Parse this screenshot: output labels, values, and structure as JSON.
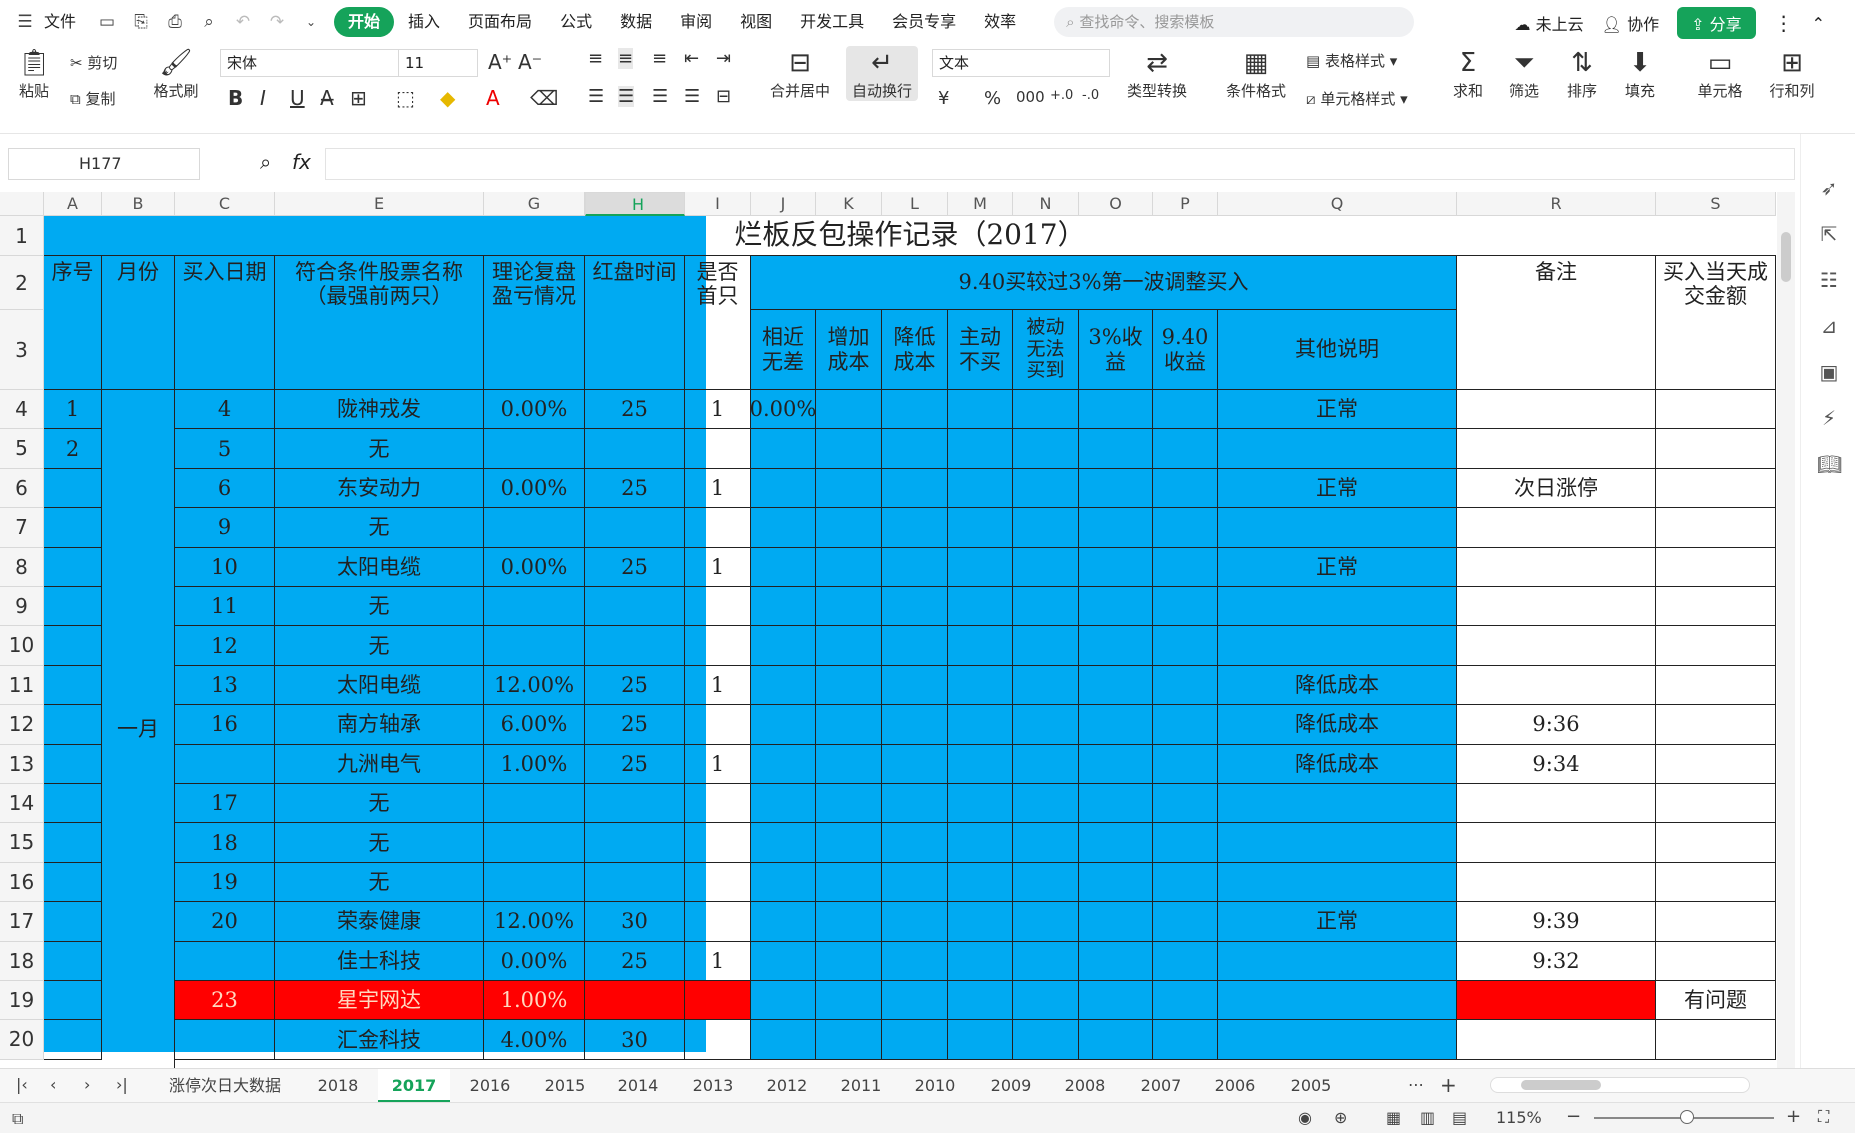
{
  "menu": {
    "file": "文件",
    "tabs": [
      "开始",
      "插入",
      "页面布局",
      "公式",
      "数据",
      "审阅",
      "视图",
      "开发工具",
      "会员专享",
      "效率"
    ],
    "search_placeholder": "查找命令、搜索模板",
    "cloud": "未上云",
    "collab": "协作",
    "share": "分享"
  },
  "ribbon": {
    "paste": "粘贴",
    "cut": "剪切",
    "copy": "复制",
    "format_painter": "格式刷",
    "font": "宋体",
    "size": "11",
    "merge": "合并居中",
    "wrap": "自动换行",
    "numfmt": "文本",
    "convert": "类型转换",
    "cond_format": "条件格式",
    "table_style": "表格样式",
    "cell_style": "单元格样式",
    "sum": "求和",
    "filter": "筛选",
    "sort": "排序",
    "fill": "填充",
    "cell": "单元格",
    "rowcol": "行和列"
  },
  "formula_bar": {
    "namebox": "H177",
    "fx": "fx"
  },
  "columns": [
    "A",
    "B",
    "C",
    "E",
    "G",
    "H",
    "I",
    "J",
    "K",
    "L",
    "M",
    "N",
    "O",
    "P",
    "Q",
    "R",
    "S"
  ],
  "sheet": {
    "title": "烂板反包操作记录（2017）",
    "h_seq": "序号",
    "h_month": "月份",
    "h_date": "买入日期",
    "h_stock": "符合条件股票名称\n（最强前两只）",
    "h_theory": "理论复盘\n盈亏情况",
    "h_red": "红盘时间",
    "h_first": "是否\n首只",
    "h_group": "9.40买较过3%第一波调整买入",
    "h_note": "备注",
    "h_amount": "买入当天成\n交金额",
    "sub": [
      "相近\n无差",
      "增加\n成本",
      "降低\n成本",
      "主动\n不买",
      "被动\n无法\n买到",
      "3%收益",
      "9.40\n收益",
      "其他说明"
    ],
    "month": "一月",
    "rows": [
      {
        "n": "4",
        "a": "1",
        "c": "4",
        "e": "陇神戎发",
        "g": "0.00%",
        "h": "25",
        "i": "1",
        "j": "0.00%",
        "q": "正常",
        "r": "",
        "s": ""
      },
      {
        "n": "5",
        "a": "2",
        "c": "5",
        "e": "无",
        "g": "",
        "h": "",
        "i": "",
        "j": "",
        "q": "",
        "r": "",
        "s": ""
      },
      {
        "n": "6",
        "a": "",
        "c": "6",
        "e": "东安动力",
        "g": "0.00%",
        "h": "25",
        "i": "1",
        "j": "",
        "q": "正常",
        "r": "次日涨停",
        "s": ""
      },
      {
        "n": "7",
        "a": "",
        "c": "9",
        "e": "无",
        "g": "",
        "h": "",
        "i": "",
        "j": "",
        "q": "",
        "r": "",
        "s": ""
      },
      {
        "n": "8",
        "a": "",
        "c": "10",
        "e": "太阳电缆",
        "g": "0.00%",
        "h": "25",
        "i": "1",
        "j": "",
        "q": "正常",
        "r": "",
        "s": ""
      },
      {
        "n": "9",
        "a": "",
        "c": "11",
        "e": "无",
        "g": "",
        "h": "",
        "i": "",
        "j": "",
        "q": "",
        "r": "",
        "s": ""
      },
      {
        "n": "10",
        "a": "",
        "c": "12",
        "e": "无",
        "g": "",
        "h": "",
        "i": "",
        "j": "",
        "q": "",
        "r": "",
        "s": ""
      },
      {
        "n": "11",
        "a": "",
        "c": "13",
        "e": "太阳电缆",
        "g": "12.00%",
        "h": "25",
        "i": "1",
        "j": "",
        "q": "降低成本",
        "r": "",
        "s": ""
      },
      {
        "n": "12",
        "a": "",
        "c": "16",
        "e": "南方轴承",
        "g": "6.00%",
        "h": "25",
        "i": "",
        "j": "",
        "q": "降低成本",
        "r": "9:36",
        "s": ""
      },
      {
        "n": "13",
        "a": "",
        "c": "",
        "e": "九洲电气",
        "g": "1.00%",
        "h": "25",
        "i": "1",
        "j": "",
        "q": "降低成本",
        "r": "9:34",
        "s": ""
      },
      {
        "n": "14",
        "a": "",
        "c": "17",
        "e": "无",
        "g": "",
        "h": "",
        "i": "",
        "j": "",
        "q": "",
        "r": "",
        "s": ""
      },
      {
        "n": "15",
        "a": "",
        "c": "18",
        "e": "无",
        "g": "",
        "h": "",
        "i": "",
        "j": "",
        "q": "",
        "r": "",
        "s": ""
      },
      {
        "n": "16",
        "a": "",
        "c": "19",
        "e": "无",
        "g": "",
        "h": "",
        "i": "",
        "j": "",
        "q": "",
        "r": "",
        "s": ""
      },
      {
        "n": "17",
        "a": "",
        "c": "20",
        "e": "荣泰健康",
        "g": "12.00%",
        "h": "30",
        "i": "",
        "j": "",
        "q": "正常",
        "r": "9:39",
        "s": ""
      },
      {
        "n": "18",
        "a": "",
        "c": "",
        "e": "佳士科技",
        "g": "0.00%",
        "h": "25",
        "i": "1",
        "j": "",
        "q": "",
        "r": "9:32",
        "s": ""
      },
      {
        "n": "19",
        "a": "",
        "c": "23",
        "e": "星宇网达",
        "g": "1.00%",
        "h": "",
        "i": "",
        "j": "",
        "q": "",
        "r": "",
        "s": "有问题"
      },
      {
        "n": "20",
        "a": "",
        "c": "",
        "e": "汇金科技",
        "g": "4.00%",
        "h": "30",
        "i": "",
        "j": "",
        "q": "",
        "r": "",
        "s": ""
      }
    ]
  },
  "sheettabs": [
    "涨停次日大数据",
    "2018",
    "2017",
    "2016",
    "2015",
    "2014",
    "2013",
    "2012",
    "2011",
    "2010",
    "2009",
    "2008",
    "2007",
    "2006",
    "2005"
  ],
  "active_tab": "2017",
  "status": {
    "zoom": "115%"
  },
  "colors": {
    "accent": "#15a35a",
    "blue_fill": "#00aaf2",
    "red_fill": "#ff0000"
  }
}
